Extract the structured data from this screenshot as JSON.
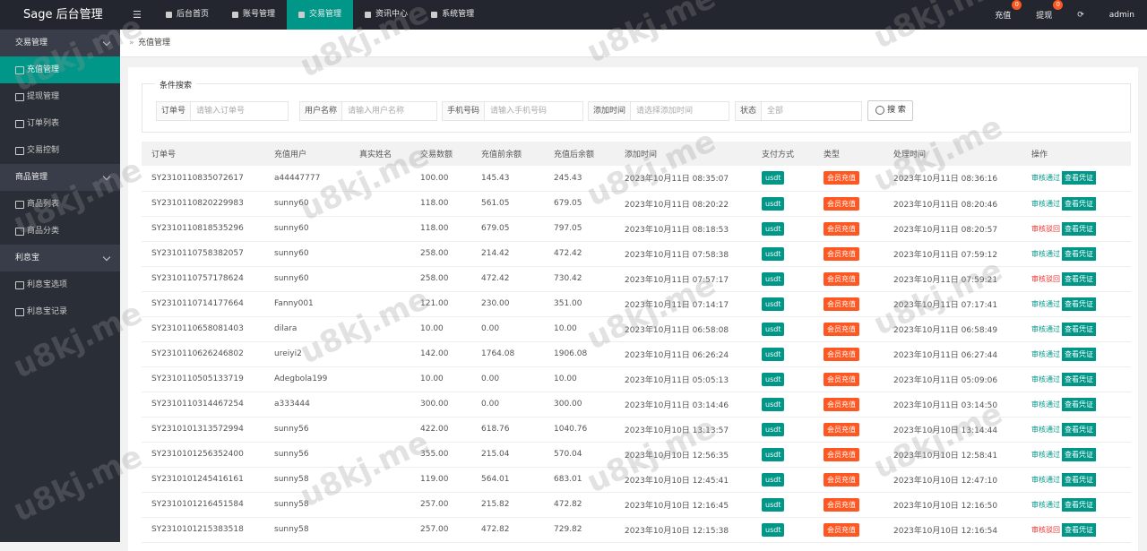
{
  "header": {
    "logo": "Sage 后台管理",
    "nav": [
      "后台首页",
      "账号管理",
      "交易管理",
      "资讯中心",
      "系统管理"
    ],
    "right": [
      {
        "label": "充值",
        "badge": "0"
      },
      {
        "label": "提现",
        "badge": "0"
      }
    ],
    "user": "admin"
  },
  "sidebar": [
    {
      "title": "交易管理",
      "items": [
        "充值管理",
        "提现管理",
        "订单列表",
        "交易控制"
      ]
    },
    {
      "title": "商品管理",
      "items": [
        "商品列表",
        "商品分类"
      ]
    },
    {
      "title": "利息宝",
      "items": [
        "利息宝选项",
        "利息宝记录"
      ]
    }
  ],
  "breadcrumb": "充值管理",
  "search": {
    "legend": "条件搜索",
    "fields": [
      {
        "label": "订单号",
        "placeholder": "请输入订单号"
      },
      {
        "label": "用户名称",
        "placeholder": "请输入用户名称"
      },
      {
        "label": "手机号码",
        "placeholder": "请输入手机号码"
      },
      {
        "label": "添加时间",
        "placeholder": "请选择添加时间"
      }
    ],
    "status_label": "状态",
    "status_value": "全部",
    "button": "搜 索"
  },
  "table": {
    "columns": [
      "订单号",
      "充值用户",
      "真实姓名",
      "交易数额",
      "充值前余额",
      "充值后余额",
      "添加时间",
      "支付方式",
      "类型",
      "处理时间",
      "操作"
    ],
    "rows": [
      {
        "id": "SY2310110835072617",
        "user": "a44447777",
        "amount": "100.00",
        "before": "145.43",
        "after": "245.43",
        "added": "2023年10月11日 08:35:07",
        "pay": "usdt",
        "type": "会员充值",
        "processed": "2023年10月11日 08:36:16",
        "status": "审核通过",
        "action": "查看凭证"
      },
      {
        "id": "SY2310110820229983",
        "user": "sunny60",
        "amount": "118.00",
        "before": "561.05",
        "after": "679.05",
        "added": "2023年10月11日 08:20:22",
        "pay": "usdt",
        "type": "会员充值",
        "processed": "2023年10月11日 08:20:46",
        "status": "审核通过",
        "action": "查看凭证"
      },
      {
        "id": "SY2310110818535296",
        "user": "sunny60",
        "amount": "118.00",
        "before": "679.05",
        "after": "797.05",
        "added": "2023年10月11日 08:18:53",
        "pay": "usdt",
        "type": "会员充值",
        "processed": "2023年10月11日 08:20:57",
        "status": "审核驳回",
        "action": "查看凭证"
      },
      {
        "id": "SY2310110758382057",
        "user": "sunny60",
        "amount": "258.00",
        "before": "214.42",
        "after": "472.42",
        "added": "2023年10月11日 07:58:38",
        "pay": "usdt",
        "type": "会员充值",
        "processed": "2023年10月11日 07:59:12",
        "status": "审核通过",
        "action": "查看凭证"
      },
      {
        "id": "SY2310110757178624",
        "user": "sunny60",
        "amount": "258.00",
        "before": "472.42",
        "after": "730.42",
        "added": "2023年10月11日 07:57:17",
        "pay": "usdt",
        "type": "会员充值",
        "processed": "2023年10月11日 07:59:21",
        "status": "审核驳回",
        "action": "查看凭证"
      },
      {
        "id": "SY2310110714177664",
        "user": "Fanny001",
        "amount": "121.00",
        "before": "230.00",
        "after": "351.00",
        "added": "2023年10月11日 07:14:17",
        "pay": "usdt",
        "type": "会员充值",
        "processed": "2023年10月11日 07:17:41",
        "status": "审核通过",
        "action": "查看凭证"
      },
      {
        "id": "SY2310110658081403",
        "user": "dilara",
        "amount": "10.00",
        "before": "0.00",
        "after": "10.00",
        "added": "2023年10月11日 06:58:08",
        "pay": "usdt",
        "type": "会员充值",
        "processed": "2023年10月11日 06:58:49",
        "status": "审核通过",
        "action": "查看凭证"
      },
      {
        "id": "SY2310110626246802",
        "user": "ureiyi2",
        "amount": "142.00",
        "before": "1764.08",
        "after": "1906.08",
        "added": "2023年10月11日 06:26:24",
        "pay": "usdt",
        "type": "会员充值",
        "processed": "2023年10月11日 06:27:44",
        "status": "审核通过",
        "action": "查看凭证"
      },
      {
        "id": "SY2310110505133719",
        "user": "Adegbola199",
        "amount": "10.00",
        "before": "0.00",
        "after": "10.00",
        "added": "2023年10月11日 05:05:13",
        "pay": "usdt",
        "type": "会员充值",
        "processed": "2023年10月11日 05:09:06",
        "status": "审核通过",
        "action": "查看凭证"
      },
      {
        "id": "SY2310110314467254",
        "user": "a333444",
        "amount": "300.00",
        "before": "0.00",
        "after": "300.00",
        "added": "2023年10月11日 03:14:46",
        "pay": "usdt",
        "type": "会员充值",
        "processed": "2023年10月11日 03:14:50",
        "status": "审核通过",
        "action": "查看凭证"
      },
      {
        "id": "SY2310101313572994",
        "user": "sunny56",
        "amount": "422.00",
        "before": "618.76",
        "after": "1040.76",
        "added": "2023年10月10日 13:13:57",
        "pay": "usdt",
        "type": "会员充值",
        "processed": "2023年10月10日 13:14:44",
        "status": "审核通过",
        "action": "查看凭证"
      },
      {
        "id": "SY2310101256352400",
        "user": "sunny56",
        "amount": "355.00",
        "before": "215.04",
        "after": "570.04",
        "added": "2023年10月10日 12:56:35",
        "pay": "usdt",
        "type": "会员充值",
        "processed": "2023年10月10日 12:58:41",
        "status": "审核通过",
        "action": "查看凭证"
      },
      {
        "id": "SY2310101245416161",
        "user": "sunny58",
        "amount": "119.00",
        "before": "564.01",
        "after": "683.01",
        "added": "2023年10月10日 12:45:41",
        "pay": "usdt",
        "type": "会员充值",
        "processed": "2023年10月10日 12:47:10",
        "status": "审核通过",
        "action": "查看凭证"
      },
      {
        "id": "SY2310101216451584",
        "user": "sunny58",
        "amount": "257.00",
        "before": "215.82",
        "after": "472.82",
        "added": "2023年10月10日 12:16:45",
        "pay": "usdt",
        "type": "会员充值",
        "processed": "2023年10月10日 12:16:50",
        "status": "审核通过",
        "action": "查看凭证"
      },
      {
        "id": "SY2310101215383518",
        "user": "sunny58",
        "amount": "257.00",
        "before": "472.82",
        "after": "729.82",
        "added": "2023年10月10日 12:15:38",
        "pay": "usdt",
        "type": "会员充值",
        "processed": "2023年10月10日 12:16:54",
        "status": "审核驳回",
        "action": "查看凭证"
      }
    ]
  },
  "watermark": "u8kj.me"
}
